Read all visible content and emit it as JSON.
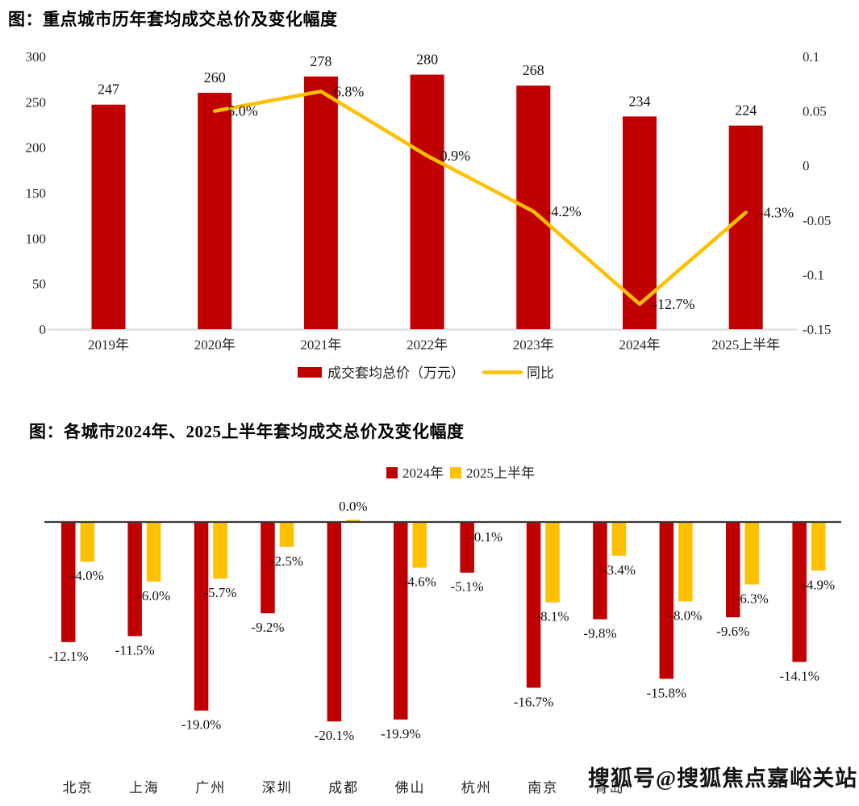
{
  "page": {
    "background": "#ffffff"
  },
  "colors": {
    "red": "#C00000",
    "gold": "#FFC000",
    "axis_line": "#D9D9D9",
    "zero_line": "#383838",
    "text": "#1a1a1a"
  },
  "watermark": {
    "text": "搜狐号@搜狐焦点嘉峪关站"
  },
  "chart_data": [
    {
      "type": "bar",
      "title": "图：重点城市历年套均成交总价及变化幅度",
      "categories": [
        "2019年",
        "2020年",
        "2021年",
        "2022年",
        "2023年",
        "2024年",
        "2025上半年"
      ],
      "series": [
        {
          "name": "成交套均总价（万元）",
          "kind": "column",
          "axis": "left",
          "color": "#C00000",
          "values": [
            247,
            260,
            278,
            280,
            268,
            234,
            224
          ]
        },
        {
          "name": "同比",
          "kind": "line",
          "axis": "right",
          "color": "#FFC000",
          "values": [
            null,
            0.05,
            0.068,
            0.009,
            -0.042,
            -0.127,
            -0.043
          ],
          "point_labels": [
            "",
            "5.0%",
            "6.8%",
            "0.9%",
            "-4.2%",
            "-12.7%",
            "-4.3%"
          ]
        }
      ],
      "left_axis": {
        "min": 0,
        "max": 300,
        "ticks": [
          "300",
          "250",
          "200",
          "150",
          "100",
          "50",
          "0"
        ]
      },
      "right_axis": {
        "min": -0.15,
        "max": 0.1,
        "ticks": [
          "0.1",
          "0.05",
          "0",
          "-0.05",
          "-0.1",
          "-0.15"
        ]
      },
      "grid": false,
      "legend_position": "bottom"
    },
    {
      "type": "bar",
      "title": "图：各城市2024年、2025上半年套均成交总价及变化幅度",
      "categories": [
        "北京",
        "上海",
        "广州",
        "深圳",
        "成都",
        "佛山",
        "杭州",
        "南京",
        "青岛",
        "",
        "",
        ""
      ],
      "series": [
        {
          "name": "2024年",
          "color": "#C00000",
          "values": [
            -12.1,
            -11.5,
            -19.0,
            -9.2,
            -20.1,
            -19.9,
            -5.1,
            -16.7,
            -9.8,
            -15.8,
            -9.6,
            -14.1
          ],
          "labels": [
            "-12.1%",
            "-11.5%",
            "-19.0%",
            "-9.2%",
            "-20.1%",
            "-19.9%",
            "-5.1%",
            "-16.7%",
            "-9.8%",
            "-15.8%",
            "-9.6%",
            "-14.1%"
          ]
        },
        {
          "name": "2025上半年",
          "color": "#FFC000",
          "values": [
            -4.0,
            -6.0,
            -5.7,
            -2.5,
            0.0,
            -4.6,
            -0.1,
            -8.1,
            -3.4,
            -8.0,
            -6.3,
            -4.9
          ],
          "labels": [
            "-4.0%",
            "-6.0%",
            "-5.7%",
            "-2.5%",
            "0.0%",
            "-4.6%",
            "-0.1%",
            "-8.1%",
            "-3.4%",
            "-8.0%",
            "-6.3%",
            "-4.9%"
          ]
        }
      ],
      "value_unit": "%",
      "grid": false,
      "legend_position": "top"
    }
  ]
}
